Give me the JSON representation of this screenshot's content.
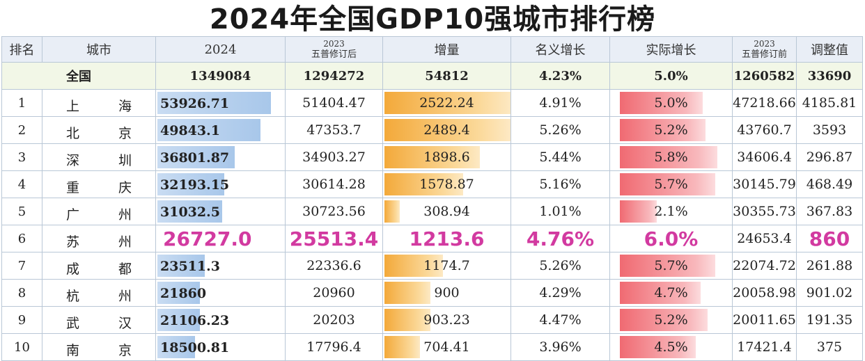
{
  "title": "2024年全国GDP10强城市排行榜",
  "headers": {
    "rank": "排名",
    "city": "城市",
    "gdp2024": "2024",
    "rev2023_year": "2023",
    "rev2023_label": "五普修订后",
    "increment": "增量",
    "nominal": "名义增长",
    "real": "实际增长",
    "pre2023_year": "2023",
    "pre2023_label": "五普修订前",
    "adjust": "调整值"
  },
  "national": {
    "name": "全国",
    "gdp2024": "1349084",
    "rev2023": "1294272",
    "increment": "54812",
    "nominal": "4.23%",
    "real": "5.0%",
    "pre2023": "1260582",
    "adjust": "33690"
  },
  "rows": [
    {
      "rank": "1",
      "c1": "上",
      "c2": "海",
      "gdp": "53926.71",
      "rev": "51404.47",
      "inc": "2522.24",
      "nom": "4.91%",
      "real": "5.0%",
      "pre": "47218.66",
      "adj": "4185.81",
      "gdp_frac": 0.88,
      "inc_frac": 1.0,
      "real_frac": 0.68
    },
    {
      "rank": "2",
      "c1": "北",
      "c2": "京",
      "gdp": "49843.1",
      "rev": "47353.7",
      "inc": "2489.4",
      "nom": "5.26%",
      "real": "5.2%",
      "pre": "43760.7",
      "adj": "3593",
      "gdp_frac": 0.8,
      "inc_frac": 0.99,
      "real_frac": 0.7
    },
    {
      "rank": "3",
      "c1": "深",
      "c2": "圳",
      "gdp": "36801.87",
      "rev": "34903.27",
      "inc": "1898.6",
      "nom": "5.44%",
      "real": "5.8%",
      "pre": "34606.4",
      "adj": "296.87",
      "gdp_frac": 0.6,
      "inc_frac": 0.75,
      "real_frac": 0.8
    },
    {
      "rank": "4",
      "c1": "重",
      "c2": "庆",
      "gdp": "32193.15",
      "rev": "30614.28",
      "inc": "1578.87",
      "nom": "5.16%",
      "real": "5.7%",
      "pre": "30145.79",
      "adj": "468.49",
      "gdp_frac": 0.52,
      "inc_frac": 0.62,
      "real_frac": 0.78
    },
    {
      "rank": "5",
      "c1": "广",
      "c2": "州",
      "gdp": "31032.5",
      "rev": "30723.56",
      "inc": "308.94",
      "nom": "1.01%",
      "real": "2.1%",
      "pre": "30355.73",
      "adj": "367.83",
      "gdp_frac": 0.5,
      "inc_frac": 0.12,
      "real_frac": 0.3
    },
    {
      "rank": "6",
      "c1": "苏",
      "c2": "州",
      "gdp": "26727.0",
      "rev": "25513.4",
      "inc": "1213.6",
      "nom": "4.76%",
      "real": "6.0%",
      "pre": "24653.4",
      "adj": "860",
      "highlight": true
    },
    {
      "rank": "7",
      "c1": "成",
      "c2": "都",
      "gdp": "23511.3",
      "rev": "22336.6",
      "inc": "1174.7",
      "nom": "5.26%",
      "real": "5.7%",
      "pre": "22074.72",
      "adj": "261.88",
      "gdp_frac": 0.37,
      "inc_frac": 0.46,
      "real_frac": 0.78
    },
    {
      "rank": "8",
      "c1": "杭",
      "c2": "州",
      "gdp": "21860",
      "rev": "20960",
      "inc": "900",
      "nom": "4.29%",
      "real": "4.7%",
      "pre": "20058.98",
      "adj": "901.02",
      "gdp_frac": 0.33,
      "inc_frac": 0.36,
      "real_frac": 0.66
    },
    {
      "rank": "9",
      "c1": "武",
      "c2": "汉",
      "gdp": "21106.23",
      "rev": "20203",
      "inc": "903.23",
      "nom": "4.47%",
      "real": "5.2%",
      "pre": "20011.65",
      "adj": "191.35",
      "gdp_frac": 0.33,
      "inc_frac": 0.36,
      "real_frac": 0.72
    },
    {
      "rank": "10",
      "c1": "南",
      "c2": "京",
      "gdp": "18500.81",
      "rev": "17796.4",
      "inc": "704.41",
      "nom": "3.96%",
      "real": "4.5%",
      "pre": "17421.4",
      "adj": "375",
      "gdp_frac": 0.29,
      "inc_frac": 0.28,
      "real_frac": 0.62
    }
  ]
}
